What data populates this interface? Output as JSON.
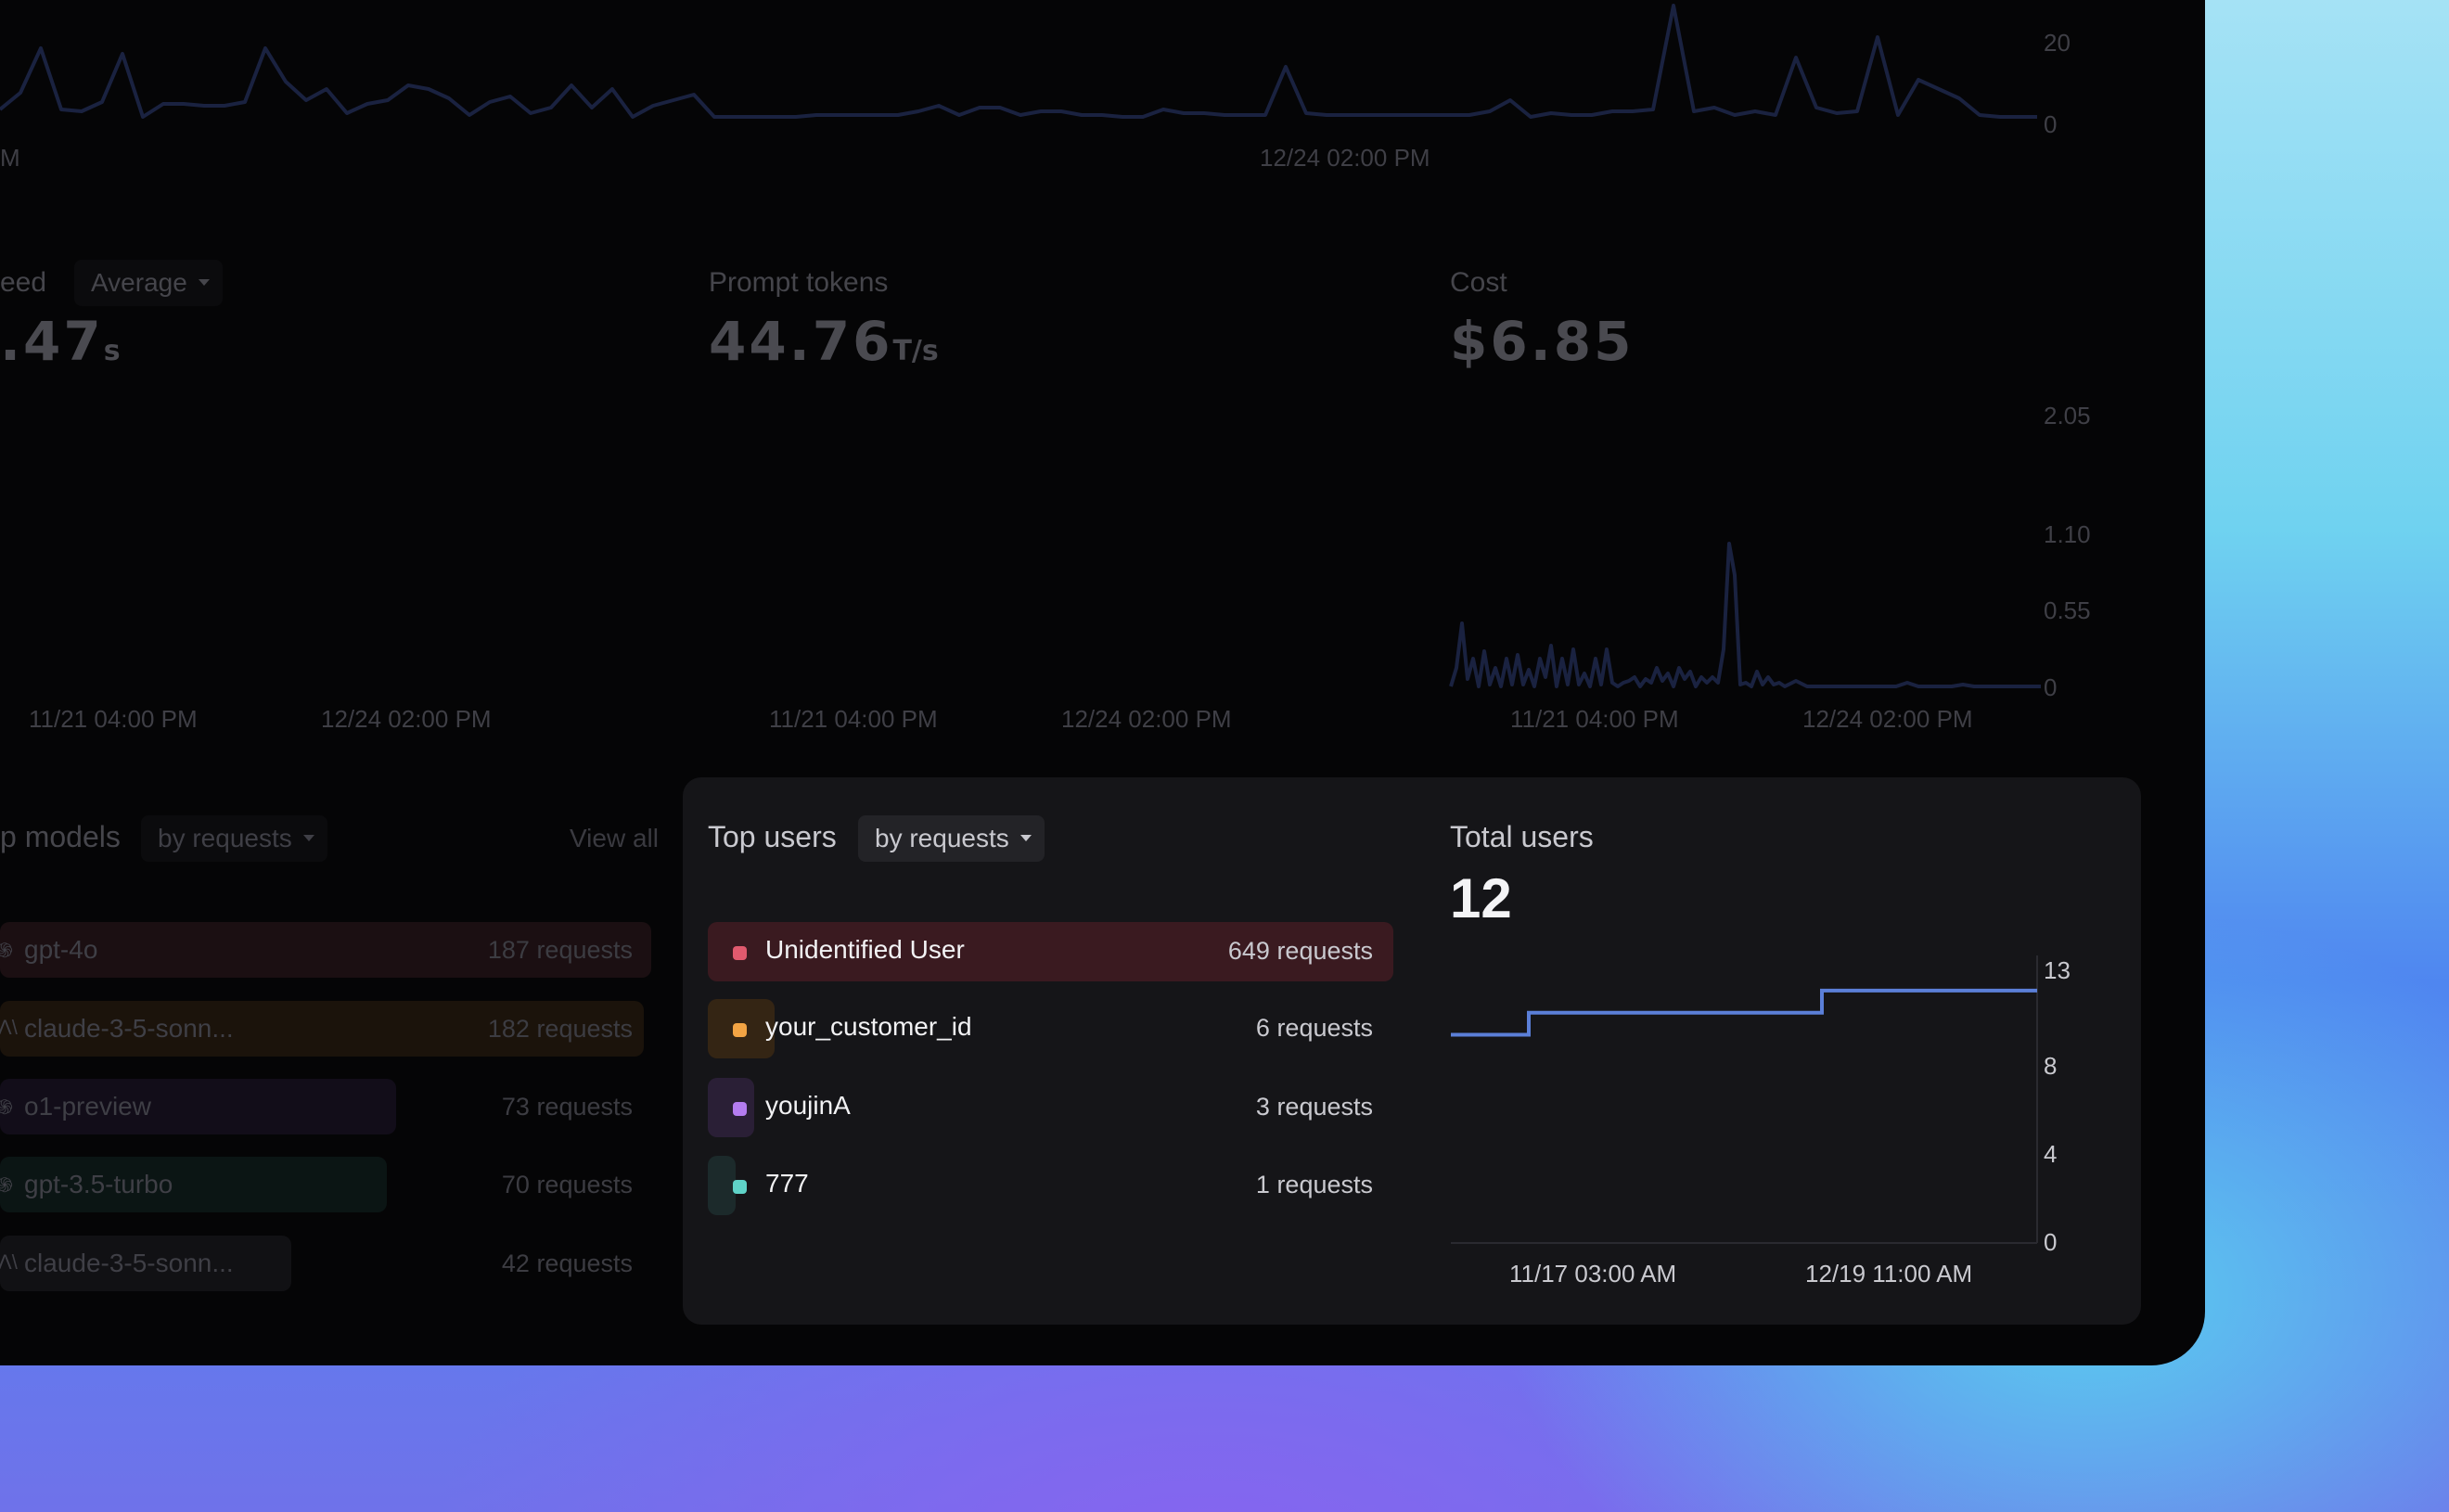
{
  "top_chart": {
    "y_ticks": [
      "20",
      "0"
    ],
    "x_ticks": [
      "M",
      "12/24 02:00 PM"
    ],
    "line_color": "#1a2240"
  },
  "metrics": {
    "speed": {
      "label": "eed",
      "mode": "Average",
      "value": ".47",
      "unit": "s",
      "x_ticks": [
        "11/21 04:00 PM",
        "12/24 02:00 PM"
      ]
    },
    "prompt_tokens": {
      "label": "Prompt tokens",
      "value": "44.76",
      "unit": "T/s",
      "x_ticks": [
        "11/21 04:00 PM",
        "12/24 02:00 PM"
      ]
    },
    "cost": {
      "label": "Cost",
      "value": "$6.85",
      "y_ticks": [
        "2.05",
        "1.10",
        "0.55",
        "0"
      ],
      "x_ticks": [
        "11/21 04:00 PM",
        "12/24 02:00 PM"
      ]
    }
  },
  "top_models": {
    "title": "p models",
    "sort": "by requests",
    "view_all": "View all",
    "items": [
      {
        "name": "gpt-4o",
        "count": "187 requests",
        "icon": "openai-icon",
        "bar_fraction": 1.0,
        "color": "#1b0f12"
      },
      {
        "name": "claude-3-5-sonn...",
        "count": "182 requests",
        "icon": "anthropic-icon",
        "bar_fraction": 0.97,
        "color": "#1b130b"
      },
      {
        "name": "o1-preview",
        "count": "73 requests",
        "icon": "openai-icon",
        "bar_fraction": 0.39,
        "color": "#120d19"
      },
      {
        "name": "gpt-3.5-turbo",
        "count": "70 requests",
        "icon": "openai-icon",
        "bar_fraction": 0.37,
        "color": "#0b1514"
      },
      {
        "name": "claude-3-5-sonn...",
        "count": "42 requests",
        "icon": "anthropic-icon",
        "bar_fraction": 0.22,
        "color": "#111114"
      }
    ]
  },
  "top_users": {
    "title": "Top users",
    "sort": "by requests",
    "items": [
      {
        "name": "Unidentified User",
        "count": "649 requests",
        "color": "#e05a6e",
        "bar_color": "#3a1a20",
        "bar_fraction": 1.0
      },
      {
        "name": "your_customer_id",
        "count": "6 requests",
        "color": "#f2a444",
        "bar_color": "#342514",
        "bar_fraction": 0.01
      },
      {
        "name": "youjinA",
        "count": "3 requests",
        "color": "#b47cf0",
        "bar_color": "#2a1f36",
        "bar_fraction": 0.005
      },
      {
        "name": "777",
        "count": "1 requests",
        "color": "#5fd3c8",
        "bar_color": "#1c2a2b",
        "bar_fraction": 0.002
      }
    ]
  },
  "total_users": {
    "label": "Total users",
    "value": "12",
    "line_color": "#5b7fd8",
    "y_ticks": [
      "13",
      "8",
      "4",
      "0"
    ],
    "x_ticks": [
      "11/17 03:00 AM",
      "12/19 11:00 AM"
    ]
  },
  "chart_data": {
    "type": "line",
    "title": "Total users",
    "x": [
      "11/17 03:00 AM",
      "",
      "",
      "12/19 11:00 AM",
      "",
      ""
    ],
    "series": [
      {
        "values": [
          10,
          11,
          11,
          11,
          12,
          12
        ]
      }
    ],
    "ylim": [
      0,
      13
    ],
    "y_ticks": [
      0,
      4,
      8,
      13
    ]
  }
}
